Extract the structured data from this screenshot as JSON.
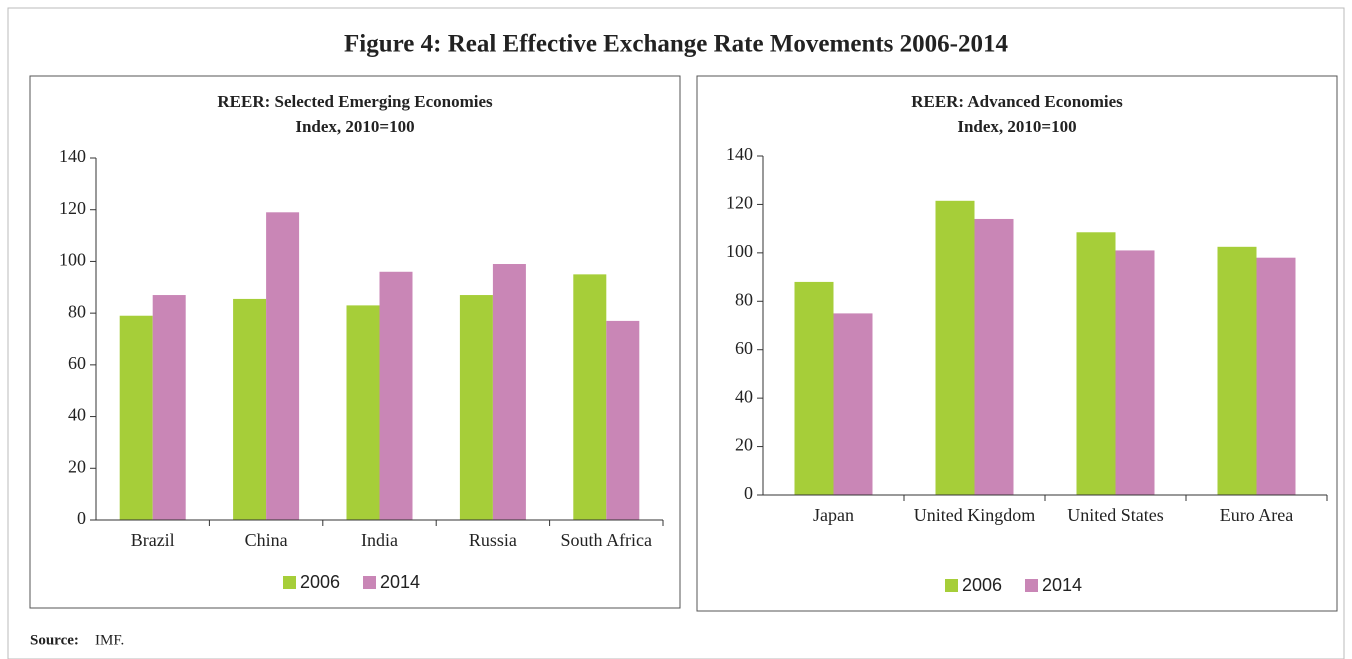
{
  "title": "Figure 4: Real Effective Exchange Rate Movements 2006-2014",
  "source": {
    "label": "Source:",
    "text": "IMF."
  },
  "chart_data": [
    {
      "type": "bar",
      "title": "REER: Selected Emerging Economies",
      "subtitle": "Index, 2010=100",
      "categories": [
        "Brazil",
        "China",
        "India",
        "Russia",
        "South Africa"
      ],
      "series": [
        {
          "name": "2006",
          "color": "#a6ce39",
          "values": [
            79,
            85.5,
            83,
            87,
            95
          ]
        },
        {
          "name": "2014",
          "color": "#c986b6",
          "values": [
            87,
            119,
            96,
            99,
            77
          ]
        }
      ],
      "ylim": [
        0,
        140
      ],
      "yticks": [
        0,
        20,
        40,
        60,
        80,
        100,
        120,
        140
      ],
      "legend": "bottom"
    },
    {
      "type": "bar",
      "title": "REER: Advanced Economies",
      "subtitle": "Index, 2010=100",
      "categories": [
        "Japan",
        "United Kingdom",
        "United States",
        "Euro Area"
      ],
      "series": [
        {
          "name": "2006",
          "color": "#a6ce39",
          "values": [
            88,
            121.5,
            108.5,
            102.5
          ]
        },
        {
          "name": "2014",
          "color": "#c986b6",
          "values": [
            75,
            114,
            101,
            98
          ]
        }
      ],
      "ylim": [
        0,
        140
      ],
      "yticks": [
        0,
        20,
        40,
        60,
        80,
        100,
        120,
        140
      ],
      "legend": "bottom"
    }
  ]
}
